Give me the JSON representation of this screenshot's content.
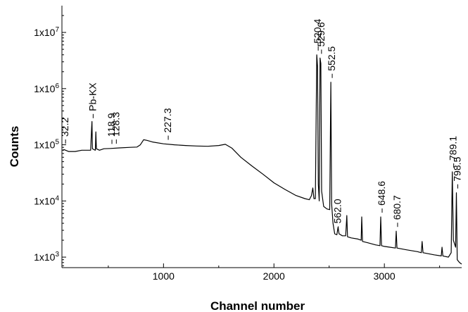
{
  "chart_data": {
    "type": "line",
    "xlabel": "Channel number",
    "ylabel": "Counts",
    "xlim": [
      80,
      3700
    ],
    "ylim": [
      650,
      30000000
    ],
    "yscale": "log",
    "x_ticks": [
      {
        "value": 1000,
        "label": "1000"
      },
      {
        "value": 2000,
        "label": "2000"
      },
      {
        "value": 3000,
        "label": "3000"
      }
    ],
    "y_ticks": [
      {
        "value": 1000,
        "base": "1x10",
        "exp": "3"
      },
      {
        "value": 10000,
        "base": "1x10",
        "exp": "4"
      },
      {
        "value": 100000,
        "base": "1x10",
        "exp": "5"
      },
      {
        "value": 1000000,
        "base": "1x10",
        "exp": "6"
      },
      {
        "value": 10000000,
        "base": "1x10",
        "exp": "7"
      }
    ],
    "grid": false,
    "series": [
      {
        "values": [
          [
            85,
            80000
          ],
          [
            100,
            82000
          ],
          [
            140,
            76000
          ],
          [
            200,
            76000
          ],
          [
            260,
            80000
          ],
          [
            300,
            80000
          ],
          [
            340,
            80000
          ],
          [
            349,
            200000
          ],
          [
            352,
            260000
          ],
          [
            356,
            85000
          ],
          [
            370,
            82000
          ],
          [
            383,
            80000
          ],
          [
            387,
            170000
          ],
          [
            392,
            85000
          ],
          [
            420,
            80000
          ],
          [
            460,
            85000
          ],
          [
            520,
            86000
          ],
          [
            600,
            88000
          ],
          [
            700,
            90000
          ],
          [
            760,
            91000
          ],
          [
            790,
            100000
          ],
          [
            820,
            123000
          ],
          [
            850,
            120000
          ],
          [
            900,
            112000
          ],
          [
            1000,
            104000
          ],
          [
            1100,
            100000
          ],
          [
            1200,
            97000
          ],
          [
            1300,
            95000
          ],
          [
            1400,
            94000
          ],
          [
            1500,
            97000
          ],
          [
            1560,
            102000
          ],
          [
            1620,
            87000
          ],
          [
            1700,
            60000
          ],
          [
            1800,
            42000
          ],
          [
            1900,
            30000
          ],
          [
            2000,
            21000
          ],
          [
            2100,
            16000
          ],
          [
            2200,
            12500
          ],
          [
            2280,
            11000
          ],
          [
            2320,
            10500
          ],
          [
            2340,
            12500
          ],
          [
            2352,
            17000
          ],
          [
            2362,
            11000
          ],
          [
            2375,
            11000
          ],
          [
            2388,
            4000000
          ],
          [
            2395,
            2500000
          ],
          [
            2402,
            20000
          ],
          [
            2410,
            10000
          ],
          [
            2418,
            3500000
          ],
          [
            2425,
            2800000
          ],
          [
            2432,
            15000
          ],
          [
            2450,
            8000
          ],
          [
            2480,
            7200
          ],
          [
            2505,
            7000
          ],
          [
            2515,
            1300000
          ],
          [
            2522,
            9000
          ],
          [
            2535,
            4000
          ],
          [
            2550,
            2600
          ],
          [
            2570,
            2500
          ],
          [
            2580,
            3400
          ],
          [
            2590,
            2600
          ],
          [
            2620,
            2400
          ],
          [
            2650,
            2400
          ],
          [
            2660,
            5500
          ],
          [
            2666,
            2300
          ],
          [
            2700,
            2200
          ],
          [
            2760,
            2100
          ],
          [
            2790,
            2000
          ],
          [
            2795,
            5200
          ],
          [
            2802,
            1900
          ],
          [
            2850,
            1800
          ],
          [
            2920,
            1650
          ],
          [
            2960,
            1600
          ],
          [
            2967,
            5200
          ],
          [
            2974,
            1600
          ],
          [
            3000,
            1550
          ],
          [
            3050,
            1500
          ],
          [
            3100,
            1450
          ],
          [
            3107,
            2900
          ],
          [
            3114,
            1450
          ],
          [
            3200,
            1350
          ],
          [
            3300,
            1250
          ],
          [
            3335,
            1200
          ],
          [
            3342,
            1900
          ],
          [
            3350,
            1200
          ],
          [
            3450,
            1100
          ],
          [
            3515,
            1050
          ],
          [
            3522,
            1500
          ],
          [
            3530,
            1050
          ],
          [
            3580,
            1000
          ],
          [
            3605,
            1200
          ],
          [
            3615,
            33000
          ],
          [
            3625,
            2000
          ],
          [
            3645,
            1500
          ],
          [
            3652,
            14000
          ],
          [
            3660,
            900
          ],
          [
            3680,
            800
          ],
          [
            3700,
            750
          ]
        ]
      }
    ],
    "annotations": [
      {
        "text": "32.2",
        "x": 100,
        "y": 88000
      },
      {
        "text": "Pb-KX",
        "x": 350,
        "y": 250000
      },
      {
        "text": "118.9",
        "x": 520,
        "y": 87000
      },
      {
        "text": "128.3",
        "x": 560,
        "y": 88000
      },
      {
        "text": "227.3",
        "x": 1030,
        "y": 103000
      },
      {
        "text": "520.4",
        "x": 2388,
        "y": 4000000
      },
      {
        "text": "529.6",
        "x": 2418,
        "y": 3500000
      },
      {
        "text": "552.5",
        "x": 2515,
        "y": 1300000
      },
      {
        "text": "562.0",
        "x": 2570,
        "y": 2500
      },
      {
        "text": "648.6",
        "x": 2967,
        "y": 5200
      },
      {
        "text": "680.7",
        "x": 3107,
        "y": 2900
      },
      {
        "text": "789.1",
        "x": 3615,
        "y": 33000
      },
      {
        "text": "798.5",
        "x": 3652,
        "y": 14000
      }
    ]
  }
}
